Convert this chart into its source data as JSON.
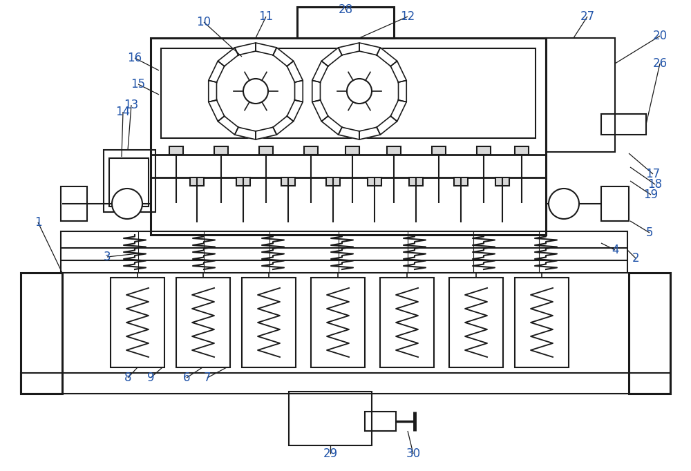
{
  "bg_color": "#ffffff",
  "line_color": "#1a1a1a",
  "label_color": "#2255aa",
  "label_fontsize": 12,
  "lw": 1.5,
  "lw2": 2.2
}
